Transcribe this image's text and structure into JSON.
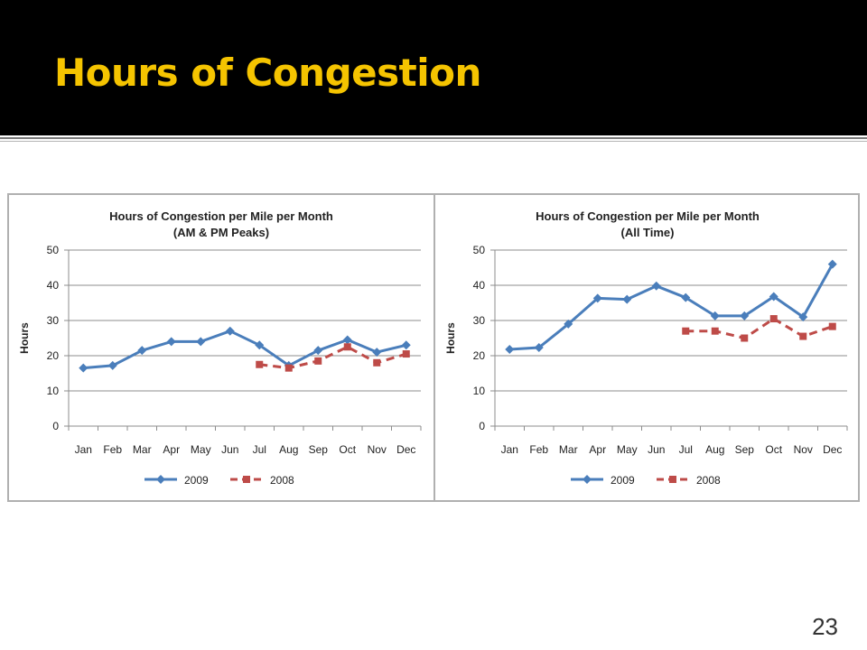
{
  "slide": {
    "title": "Hours of Congestion",
    "page_number": "23",
    "title_color": "#f5c400"
  },
  "chart_data": [
    {
      "type": "line",
      "title": "Hours of Congestion per Mile per Month",
      "subtitle": "(AM & PM Peaks)",
      "xlabel": "",
      "ylabel": "Hours",
      "ylim": [
        0,
        50
      ],
      "yticks": [
        0,
        10,
        20,
        30,
        40,
        50
      ],
      "grid": true,
      "legend_position": "bottom",
      "categories": [
        "Jan",
        "Feb",
        "Mar",
        "Apr",
        "May",
        "Jun",
        "Jul",
        "Aug",
        "Sep",
        "Oct",
        "Nov",
        "Dec"
      ],
      "series": [
        {
          "name": "2009",
          "color": "#4a7ebb",
          "style": "solid",
          "marker": "diamond",
          "values": [
            16.5,
            17.2,
            21.5,
            24,
            24,
            27,
            23,
            17.2,
            21.5,
            24.5,
            21,
            23
          ]
        },
        {
          "name": "2008",
          "color": "#be4b48",
          "style": "dashed",
          "marker": "square",
          "values": [
            null,
            null,
            null,
            null,
            null,
            null,
            17.5,
            16.5,
            18.5,
            22.5,
            18,
            20.5
          ]
        }
      ]
    },
    {
      "type": "line",
      "title": "Hours of Congestion per Mile per Month",
      "subtitle": "(All Time)",
      "xlabel": "",
      "ylabel": "Hours",
      "ylim": [
        0,
        50
      ],
      "yticks": [
        0,
        10,
        20,
        30,
        40,
        50
      ],
      "grid": true,
      "legend_position": "bottom",
      "categories": [
        "Jan",
        "Feb",
        "Mar",
        "Apr",
        "May",
        "Jun",
        "Jul",
        "Aug",
        "Sep",
        "Oct",
        "Nov",
        "Dec"
      ],
      "series": [
        {
          "name": "2009",
          "color": "#4a7ebb",
          "style": "solid",
          "marker": "diamond",
          "values": [
            21.8,
            22.3,
            29,
            36.3,
            36,
            39.8,
            36.5,
            31.3,
            31.3,
            36.8,
            31,
            46
          ]
        },
        {
          "name": "2008",
          "color": "#be4b48",
          "style": "dashed",
          "marker": "square",
          "values": [
            null,
            null,
            null,
            null,
            null,
            null,
            27,
            27,
            25,
            30.5,
            25.5,
            28.3
          ]
        }
      ]
    }
  ]
}
